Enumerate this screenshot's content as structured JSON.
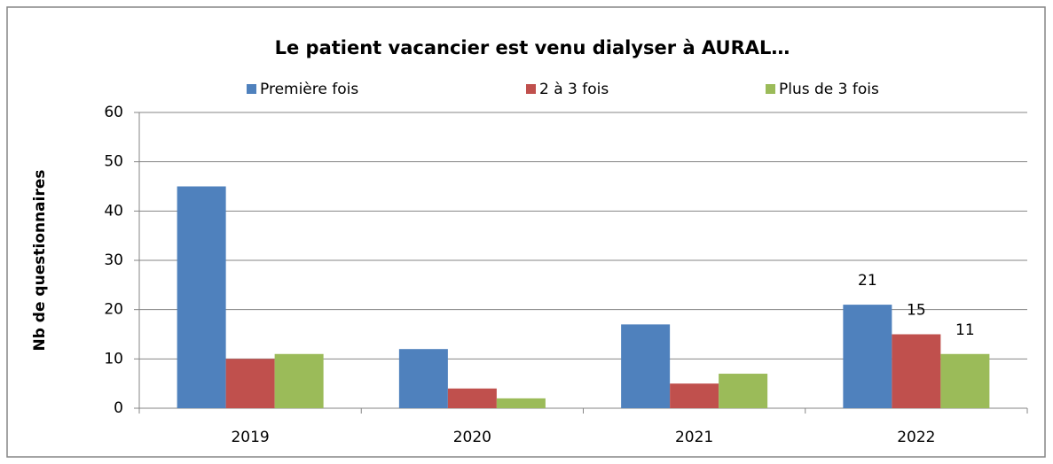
{
  "chart_data": {
    "type": "bar",
    "title": "Le patient vacancier est venu dialyser à AURAL…",
    "y_label": "Nb de questionnaires",
    "categories": [
      "2019",
      "2020",
      "2021",
      "2022"
    ],
    "series": [
      {
        "name": "Première fois",
        "color": "#4f81bd",
        "values": [
          45,
          12,
          17,
          21
        ],
        "value_labels": [
          null,
          null,
          null,
          "21"
        ]
      },
      {
        "name": "2 à 3 fois",
        "color": "#c0504d",
        "values": [
          10,
          4,
          5,
          15
        ],
        "value_labels": [
          null,
          null,
          null,
          "15"
        ]
      },
      {
        "name": "Plus de 3 fois",
        "color": "#9bbb59",
        "values": [
          11,
          2,
          7,
          11
        ],
        "value_labels": [
          null,
          null,
          null,
          "11"
        ]
      }
    ],
    "ylim": [
      0,
      60
    ],
    "yticks": [
      0,
      10,
      20,
      30,
      40,
      50,
      60
    ],
    "grid": true,
    "legend": "top"
  }
}
